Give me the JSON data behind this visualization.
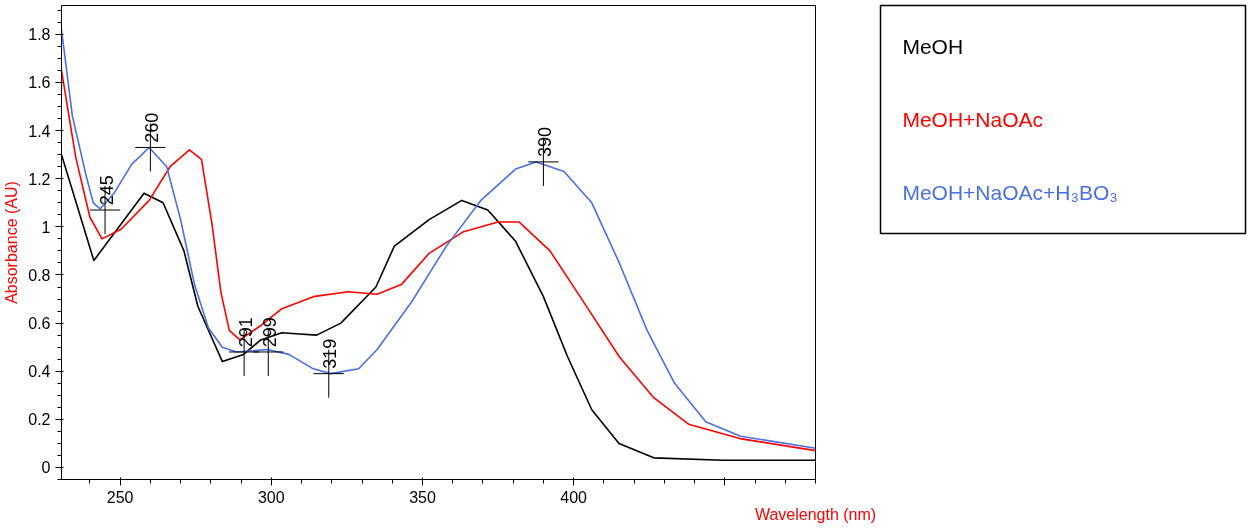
{
  "chart_data": {
    "type": "line",
    "xlabel": "Wavelength (nm)",
    "ylabel": "Absorbance (AU)",
    "xlim": [
      230.6,
      480
    ],
    "ylim": [
      -0.05,
      1.92
    ],
    "xticks": [
      250,
      300,
      350,
      400,
      {
        "value": 450,
        "label": null
      }
    ],
    "yticks": [
      0,
      0.2,
      0.4,
      0.6,
      0.8,
      1,
      1.2,
      1.4,
      1.6,
      1.8
    ],
    "grid": false,
    "legend": "top right",
    "series": [
      {
        "name": "MeOH",
        "color": "#000000",
        "x": [
          230.6,
          241.3,
          257.9,
          264.2,
          271.1,
          275.7,
          283.8,
          290.8,
          296.5,
          303.5,
          309.2,
          315,
          323,
          334.6,
          340.7,
          352.2,
          363,
          371.6,
          380.8,
          390,
          398,
          406,
          415,
          426.5,
          449.4,
          480
        ],
        "values": [
          1.3,
          0.86,
          1.14,
          1.1,
          0.9,
          0.67,
          0.44,
          0.47,
          0.53,
          0.56,
          0.555,
          0.55,
          0.6,
          0.75,
          0.92,
          1.03,
          1.11,
          1.07,
          0.94,
          0.71,
          0.46,
          0.24,
          0.1,
          0.04,
          0.03,
          0.03
        ]
      },
      {
        "name": "MeOH+NaOAc",
        "color": "#ff0000",
        "x": [
          230.6,
          235.3,
          240,
          244,
          250.3,
          259.6,
          266.5,
          272.9,
          276.9,
          280.4,
          283.3,
          286.1,
          289.6,
          296.5,
          303.5,
          313.9,
          325.4,
          335,
          343,
          352.2,
          363.6,
          375,
          382,
          392.2,
          403.7,
          415.1,
          426.5,
          438,
          455,
          480
        ],
        "values": [
          1.65,
          1.29,
          1.04,
          0.95,
          0.99,
          1.11,
          1.25,
          1.32,
          1.28,
          1.01,
          0.73,
          0.57,
          0.53,
          0.59,
          0.66,
          0.71,
          0.73,
          0.72,
          0.76,
          0.89,
          0.98,
          1.02,
          1.02,
          0.9,
          0.68,
          0.46,
          0.29,
          0.18,
          0.12,
          0.07
        ]
      },
      {
        "name": "MeOH+NaOAc+H₃BO₃",
        "color": "#4a6fe0",
        "x": [
          230.6,
          234.2,
          238.8,
          241.1,
          243.4,
          248,
          253.8,
          259.6,
          265.4,
          270,
          274.6,
          279.2,
          283.8,
          288.5,
          298.8,
          305.8,
          313.9,
          319.6,
          328.9,
          335,
          346.5,
          357.9,
          369.3,
          380.8,
          387.6,
          396.8,
          406,
          415.1,
          424.3,
          433.4,
          443.7,
          455.2,
          480
        ],
        "values": [
          1.82,
          1.46,
          1.21,
          1.1,
          1.075,
          1.14,
          1.26,
          1.33,
          1.25,
          1.03,
          0.76,
          0.58,
          0.5,
          0.48,
          0.49,
          0.47,
          0.41,
          0.39,
          0.41,
          0.49,
          0.69,
          0.92,
          1.11,
          1.24,
          1.27,
          1.23,
          1.1,
          0.85,
          0.57,
          0.35,
          0.19,
          0.13,
          0.08
        ]
      }
    ],
    "annotations": [
      {
        "text": "245",
        "x": 245,
        "y": 1.07
      },
      {
        "text": "260",
        "x": 260,
        "y": 1.33
      },
      {
        "text": "291",
        "x": 291,
        "y": 0.48
      },
      {
        "text": "299",
        "x": 299,
        "y": 0.48
      },
      {
        "text": "319",
        "x": 319,
        "y": 0.39
      },
      {
        "text": "390",
        "x": 390,
        "y": 1.27
      }
    ]
  }
}
